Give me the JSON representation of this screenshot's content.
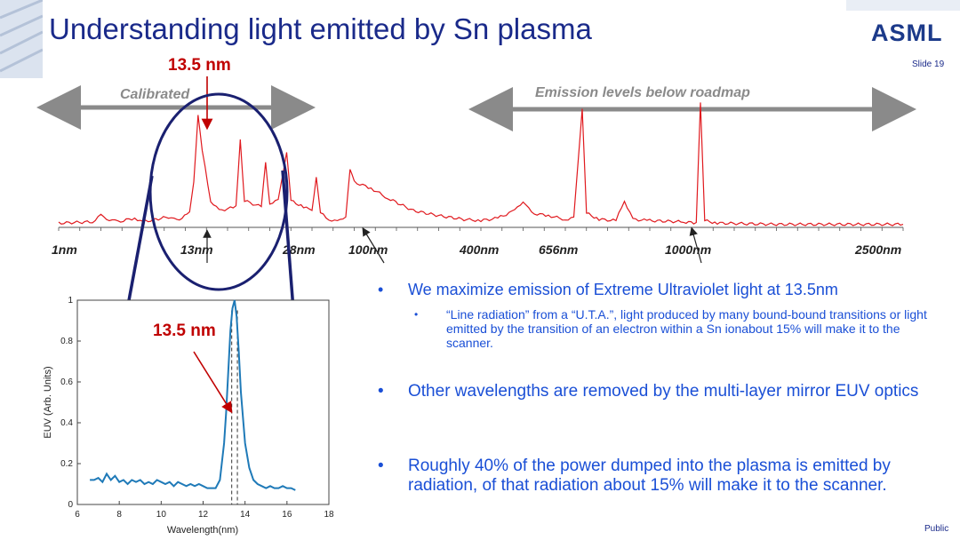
{
  "slide": {
    "title": "Understanding light emitted by Sn plasma",
    "logo": "ASML",
    "slide_number": "Slide 19",
    "classification": "Public"
  },
  "colors": {
    "title": "#1a2a8a",
    "bullet_text": "#1a4fd6",
    "annotation_red": "#c00000",
    "spectrum_red": "#e0191e",
    "zoom_curve": "#1f7ab8",
    "ellipse": "#1a2070"
  },
  "spectrum_annotations": {
    "peak_label": "13.5 nm",
    "calibrated": "Calibrated",
    "emission_levels": "Emission levels below roadmap",
    "wavelength_markers": [
      "1nm",
      "13nm",
      "28nm",
      "100nm",
      "400nm",
      "656nm",
      "1000nm",
      "2500nm"
    ]
  },
  "bullets": {
    "b1": "We maximize emission of Extreme Ultraviolet light at 13.5nm",
    "b1_sub": "“Line radiation” from a “U.T.A.”, light produced by many bound-bound transitions or light emitted by the transition of an electron within a Sn ionabout 15% will make it to the scanner.",
    "b2": "Other wavelengths are removed by the multi-layer mirror EUV optics",
    "b3": "Roughly 40% of the power dumped into the plasma is emitted by radiation, of that radiation about 15% will make it to the scanner.",
    "dot": "•"
  },
  "chart_data": [
    {
      "type": "line",
      "description_kind": "emission spectrum",
      "x_markers": [
        "1nm",
        "13nm",
        "28nm",
        "100nm",
        "400nm",
        "656nm",
        "1000nm",
        "2500nm"
      ],
      "series": [
        {
          "points": [
            [
              0,
              0.02
            ],
            [
              0.04,
              0.03
            ],
            [
              0.05,
              0.08
            ],
            [
              0.06,
              0.05
            ],
            [
              0.07,
              0.03
            ],
            [
              0.09,
              0.06
            ],
            [
              0.1,
              0.03
            ],
            [
              0.13,
              0.07
            ],
            [
              0.14,
              0.04
            ],
            [
              0.155,
              0.1
            ],
            [
              0.16,
              0.35
            ],
            [
              0.165,
              0.9
            ],
            [
              0.17,
              0.6
            ],
            [
              0.18,
              0.2
            ],
            [
              0.19,
              0.12
            ],
            [
              0.21,
              0.15
            ],
            [
              0.215,
              0.7
            ],
            [
              0.22,
              0.2
            ],
            [
              0.24,
              0.15
            ],
            [
              0.245,
              0.5
            ],
            [
              0.25,
              0.18
            ],
            [
              0.26,
              0.2
            ],
            [
              0.27,
              0.6
            ],
            [
              0.275,
              0.2
            ],
            [
              0.29,
              0.15
            ],
            [
              0.3,
              0.12
            ],
            [
              0.305,
              0.4
            ],
            [
              0.31,
              0.1
            ],
            [
              0.32,
              0.05
            ],
            [
              0.33,
              0.03
            ],
            [
              0.34,
              0.08
            ],
            [
              0.345,
              0.45
            ],
            [
              0.35,
              0.35
            ],
            [
              0.37,
              0.3
            ],
            [
              0.39,
              0.22
            ],
            [
              0.42,
              0.12
            ],
            [
              0.45,
              0.08
            ],
            [
              0.48,
              0.05
            ],
            [
              0.5,
              0.04
            ],
            [
              0.52,
              0.06
            ],
            [
              0.54,
              0.12
            ],
            [
              0.55,
              0.2
            ],
            [
              0.56,
              0.1
            ],
            [
              0.58,
              0.08
            ],
            [
              0.6,
              0.05
            ],
            [
              0.61,
              0.06
            ],
            [
              0.62,
              0.95
            ],
            [
              0.625,
              0.1
            ],
            [
              0.64,
              0.05
            ],
            [
              0.66,
              0.04
            ],
            [
              0.67,
              0.2
            ],
            [
              0.68,
              0.05
            ],
            [
              0.7,
              0.04
            ],
            [
              0.74,
              0.03
            ],
            [
              0.755,
              0.02
            ],
            [
              0.76,
              1.0
            ],
            [
              0.765,
              0.04
            ],
            [
              0.78,
              0.02
            ],
            [
              0.85,
              0.01
            ],
            [
              0.95,
              0.01
            ],
            [
              1,
              0.01
            ]
          ]
        }
      ]
    },
    {
      "type": "line",
      "xlabel": "Wavelength(nm)",
      "ylabel": "EUV (Arb. Units)",
      "xlim": [
        6,
        18
      ],
      "ylim": [
        0,
        1
      ],
      "xticks": [
        6,
        8,
        10,
        12,
        14,
        16,
        18
      ],
      "yticks": [
        0,
        0.2,
        0.4,
        0.6,
        0.8,
        1
      ],
      "peak_label": "13.5 nm",
      "reference_lines_x": [
        13.365,
        13.635
      ],
      "series": [
        {
          "x": [
            6.6,
            6.8,
            7.0,
            7.2,
            7.4,
            7.6,
            7.8,
            8.0,
            8.2,
            8.4,
            8.6,
            8.8,
            9.0,
            9.2,
            9.4,
            9.6,
            9.8,
            10.0,
            10.2,
            10.4,
            10.6,
            10.8,
            11.0,
            11.2,
            11.4,
            11.6,
            11.8,
            12.0,
            12.2,
            12.4,
            12.6,
            12.8,
            13.0,
            13.1,
            13.2,
            13.3,
            13.4,
            13.5,
            13.6,
            13.7,
            13.8,
            14.0,
            14.2,
            14.4,
            14.6,
            14.8,
            15.0,
            15.2,
            15.4,
            15.6,
            15.8,
            16.0,
            16.2,
            16.4
          ],
          "values": [
            0.12,
            0.12,
            0.13,
            0.11,
            0.15,
            0.12,
            0.14,
            0.11,
            0.12,
            0.1,
            0.12,
            0.11,
            0.12,
            0.1,
            0.11,
            0.1,
            0.12,
            0.11,
            0.1,
            0.11,
            0.09,
            0.11,
            0.1,
            0.09,
            0.1,
            0.09,
            0.1,
            0.09,
            0.08,
            0.08,
            0.08,
            0.12,
            0.3,
            0.45,
            0.65,
            0.85,
            0.96,
            1.0,
            0.92,
            0.75,
            0.55,
            0.3,
            0.18,
            0.12,
            0.1,
            0.09,
            0.08,
            0.09,
            0.08,
            0.08,
            0.09,
            0.08,
            0.08,
            0.07
          ]
        }
      ]
    }
  ]
}
